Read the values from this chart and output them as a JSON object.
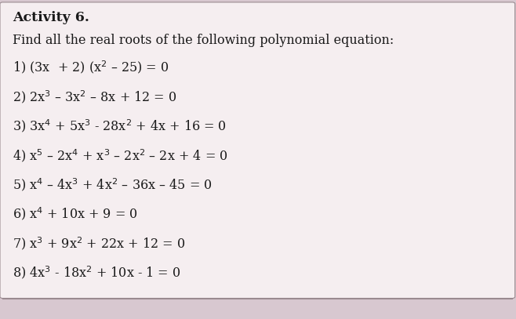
{
  "title_bold": "Activity 6.",
  "subtitle": "Find all the real roots of the following polynomial equation:",
  "equations": [
    "1) (3x  + 2) (x$^2$ – 25) = 0",
    "2) 2x$^3$ – 3x$^2$ – 8x + 12 = 0",
    "3) 3x$^4$ + 5x$^3$ - 28x$^2$ + 4x + 16 = 0",
    "4) x$^5$ – 2x$^4$ + x$^3$ – 2x$^2$ – 2x + 4 = 0",
    "5) x$^4$ – 4x$^3$ + 4x$^2$ – 36x – 45 = 0",
    "6) x$^4$ + 10x + 9 = 0",
    "7) x$^3$ + 9x$^2$ + 22x + 12 = 0",
    "8) 4x$^3$ - 18x$^2$ + 10x - 1 = 0"
  ],
  "bg_color": "#d8c8d0",
  "box_color": "#f5eef0",
  "box_edge_color": "#9a8a90",
  "text_color": "#1a1a1a",
  "title_fontsize": 12.5,
  "body_fontsize": 11.5
}
